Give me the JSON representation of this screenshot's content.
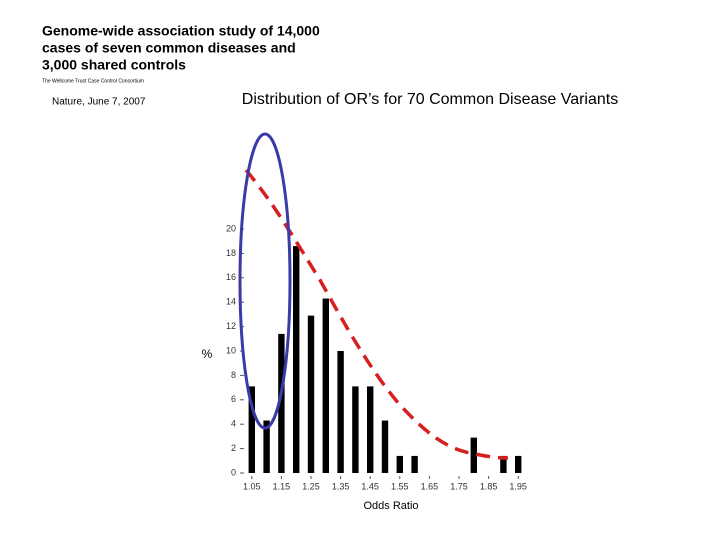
{
  "header": {
    "headline_lines": [
      "Genome-wide association study of 14,000",
      "cases of seven common diseases and",
      "3,000 shared controls"
    ],
    "credit": "The Wellcome Trust Case Control Consortium",
    "citation": "Nature, June 7, 2007"
  },
  "chart_data": {
    "type": "bar",
    "title": "Distribution of OR’s for 70 Common Disease Variants",
    "x_label": "Odds Ratio",
    "y_label": "%",
    "x": [
      1.05,
      1.1,
      1.15,
      1.2,
      1.25,
      1.3,
      1.35,
      1.4,
      1.45,
      1.5,
      1.55,
      1.6,
      1.8,
      1.9,
      1.95
    ],
    "values": [
      7.1,
      4.3,
      11.4,
      18.6,
      12.9,
      14.3,
      10,
      7.1,
      7.1,
      4.3,
      1.4,
      1.4,
      2.9,
      1.4,
      1.4
    ],
    "color": "#000000",
    "xlim": [
      1.0,
      2.0
    ],
    "xticks": [
      1.05,
      1.15,
      1.25,
      1.35,
      1.45,
      1.55,
      1.65,
      1.75,
      1.85,
      1.95
    ],
    "ylim": [
      0,
      20
    ],
    "yticks": [
      0,
      2,
      4,
      6,
      8,
      10,
      12,
      14,
      16,
      18,
      20
    ]
  }
}
